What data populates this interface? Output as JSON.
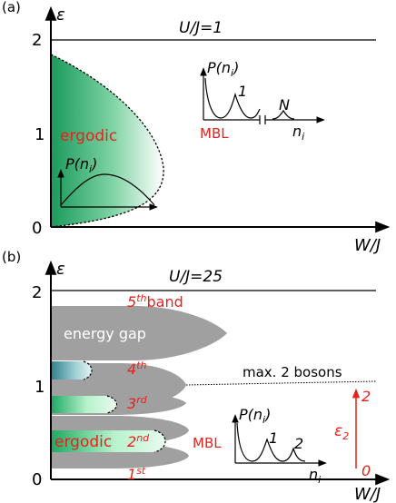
{
  "panel_a": {
    "label": "(a)",
    "y_axis_label": "ε",
    "x_axis_label": "W/J",
    "ratio_label": "U/J=1",
    "ticks": [
      "0",
      "1",
      "2"
    ],
    "region_ergodic_label": "ergodic",
    "region_mbl_label": "MBL",
    "inset_ergodic": {
      "y_label": "P(n_i)"
    },
    "inset_mbl": {
      "y_label": "P(n_i)",
      "x_label": "n_i",
      "peak_1": "1",
      "peak_n": "N"
    }
  },
  "panel_b": {
    "label": "(b)",
    "y_axis_label": "ε",
    "x_axis_label": "W/J",
    "ratio_label": "U/J=25",
    "ticks": [
      "0",
      "1",
      "2"
    ],
    "energy_gap_label": "energy gap",
    "bands": [
      {
        "ordinal": "1",
        "suffix": "st",
        "extra": ""
      },
      {
        "ordinal": "2",
        "suffix": "nd",
        "extra": ""
      },
      {
        "ordinal": "3",
        "suffix": "rd",
        "extra": ""
      },
      {
        "ordinal": "4",
        "suffix": "th",
        "extra": ""
      },
      {
        "ordinal": "5",
        "suffix": "th",
        "extra": "band"
      }
    ],
    "region_ergodic_label": "ergodic",
    "region_mbl_label": "MBL",
    "boson_note": "max. 2 bosons",
    "epsilon2": {
      "label": "ε",
      "subscript": "2",
      "top": "2",
      "bottom": "0"
    },
    "inset_mbl": {
      "y_label": "P(n_i)",
      "x_label": "n_i",
      "peak_1": "1",
      "peak_2": "2"
    }
  },
  "colors": {
    "red": "#e8211b",
    "gray": "#a0a0a0",
    "green": "#1a9a5c",
    "light_green": "#b8f2cc",
    "teal": "#2f7f8d"
  }
}
